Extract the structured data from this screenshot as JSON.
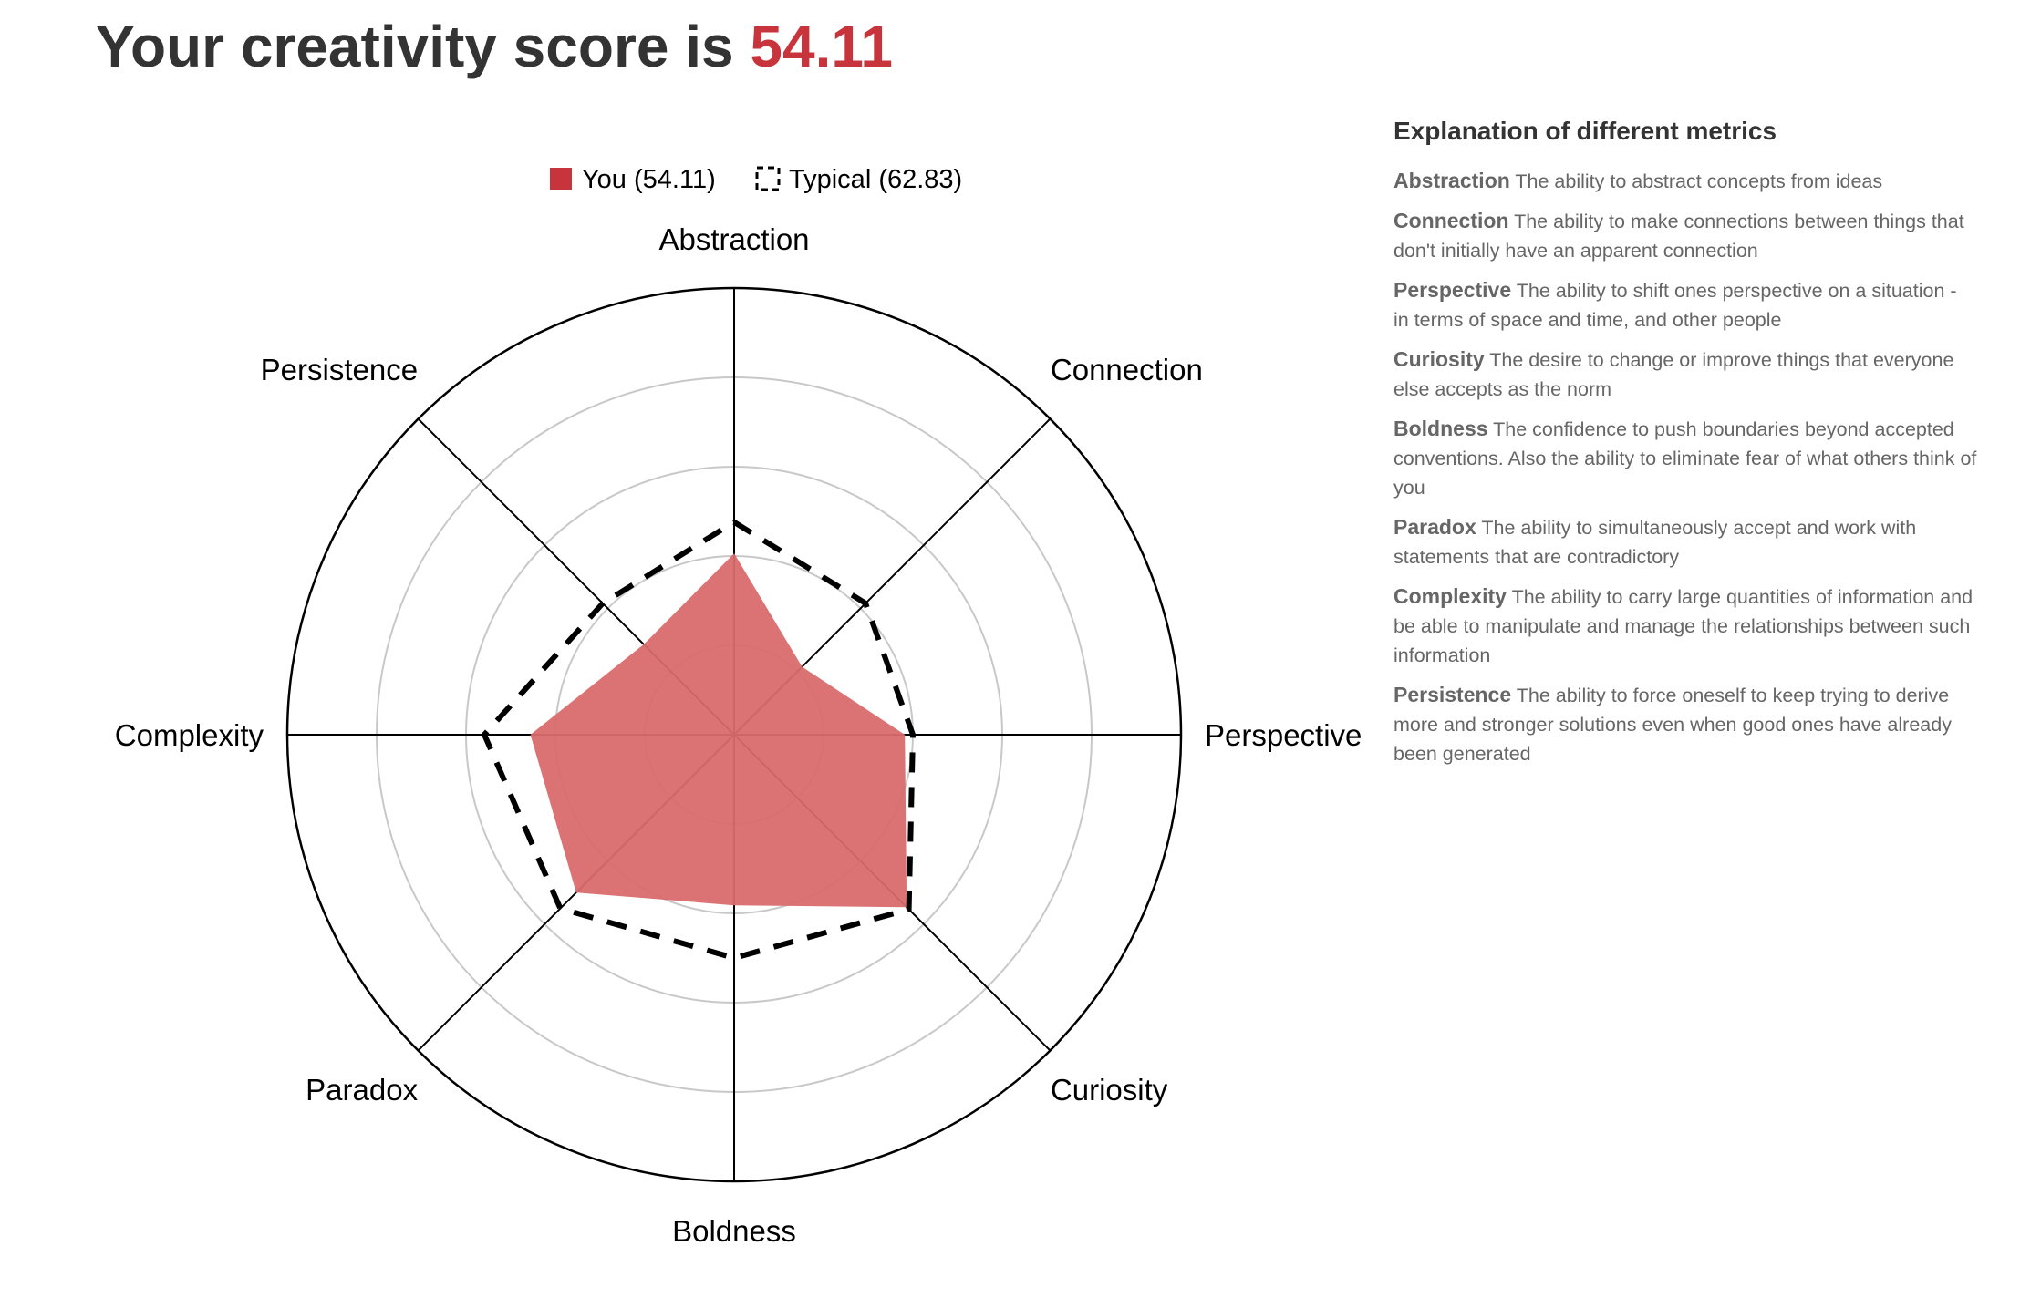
{
  "header": {
    "title_prefix": "Your creativity score is",
    "score": "54.11",
    "score_color": "#c8343b"
  },
  "chart_data": {
    "type": "radar",
    "axes": [
      "Abstraction",
      "Connection",
      "Perspective",
      "Curiosity",
      "Boldness",
      "Paradox",
      "Complexity",
      "Persistence"
    ],
    "rlim": [
      0,
      100
    ],
    "rings": 5,
    "legend_position": "top",
    "series": [
      {
        "name": "You (54.11)",
        "style": "filled",
        "color": "#d96b6e",
        "values": [
          40.6,
          21.5,
          38.2,
          54.6,
          38.2,
          50.0,
          45.6,
          28.6
        ]
      },
      {
        "name": "Typical (62.83)",
        "style": "dashed",
        "color": "#000000",
        "values": [
          47.6,
          41.6,
          40.0,
          55.3,
          50.0,
          55.0,
          55.9,
          41.6
        ]
      }
    ]
  },
  "explanation": {
    "title": "Explanation of different metrics",
    "metrics": [
      {
        "name": "Abstraction",
        "desc": "The ability to abstract concepts from ideas"
      },
      {
        "name": "Connection",
        "desc": "The ability to make connections between things that don't initially have an apparent connection"
      },
      {
        "name": "Perspective",
        "desc": "The ability to shift ones perspective on a situation - in terms of space and time, and other people"
      },
      {
        "name": "Curiosity",
        "desc": "The desire to change or improve things that everyone else accepts as the norm"
      },
      {
        "name": "Boldness",
        "desc": "The confidence to push boundaries beyond accepted conventions. Also the ability to eliminate fear of what others think of you"
      },
      {
        "name": "Paradox",
        "desc": "The ability to simultaneously accept and work with statements that are contradictory"
      },
      {
        "name": "Complexity",
        "desc": "The ability to carry large quantities of information and be able to manipulate and manage the relationships between such information"
      },
      {
        "name": "Persistence",
        "desc": "The ability to force oneself to keep trying to derive more and stronger solutions even when good ones have already been generated"
      }
    ]
  }
}
